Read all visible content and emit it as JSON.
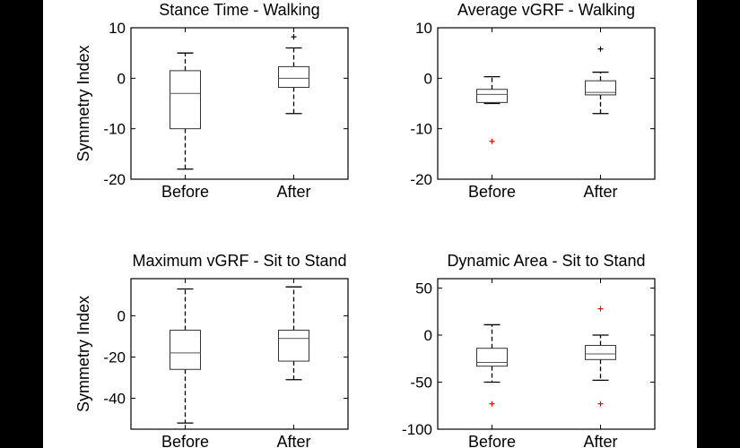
{
  "colors": {
    "figure_bg": "#ffffff",
    "outer_bg": "#000000",
    "box": "#333333",
    "whisker": "#000000",
    "outlier": "#ff0000"
  },
  "chart_data": [
    {
      "type": "boxplot",
      "title": "Stance Time - Walking",
      "ylabel": "Symmetry Index",
      "ylim": [
        -20,
        10
      ],
      "yticks": [
        10,
        0,
        -10,
        -20
      ],
      "ytick_labels": [
        "10",
        "0",
        "-10",
        "-20"
      ],
      "categories": [
        "Before",
        "After"
      ],
      "boxes": [
        {
          "category": "Before",
          "whisker_low": -18,
          "q1": -10,
          "median": -3,
          "q3": 1.5,
          "whisker_high": 5,
          "outliers": []
        },
        {
          "category": "After",
          "whisker_low": -7,
          "q1": -1.8,
          "median": 0,
          "q3": 2.3,
          "whisker_high": 6,
          "outliers": [
            8.2
          ]
        }
      ]
    },
    {
      "type": "boxplot",
      "title": "Average vGRF - Walking",
      "ylabel": "",
      "ylim": [
        -20,
        10
      ],
      "yticks": [
        10,
        0,
        -10,
        -20
      ],
      "ytick_labels": [
        "10",
        "0",
        "-10",
        "-20"
      ],
      "categories": [
        "Before",
        "After"
      ],
      "boxes": [
        {
          "category": "Before",
          "whisker_low": -5,
          "q1": -4.8,
          "median": -3.2,
          "q3": -2.2,
          "whisker_high": 0.3,
          "outliers": [
            -12.5
          ]
        },
        {
          "category": "After",
          "whisker_low": -7,
          "q1": -3.3,
          "median": -2.8,
          "q3": -0.5,
          "whisker_high": 1.2,
          "outliers": [
            5.8
          ]
        }
      ]
    },
    {
      "type": "boxplot",
      "title": "Maximum vGRF - Sit to Stand",
      "ylabel": "Symmetry Index",
      "ylim": [
        -55,
        18
      ],
      "yticks": [
        0,
        -20,
        -40
      ],
      "ytick_labels": [
        "0",
        "-20",
        "-40"
      ],
      "categories": [
        "Before",
        "After"
      ],
      "boxes": [
        {
          "category": "Before",
          "whisker_low": -52,
          "q1": -26,
          "median": -18,
          "q3": -7,
          "whisker_high": 13,
          "outliers": []
        },
        {
          "category": "After",
          "whisker_low": -31,
          "q1": -22,
          "median": -11,
          "q3": -7,
          "whisker_high": 14,
          "outliers": []
        }
      ]
    },
    {
      "type": "boxplot",
      "title": "Dynamic Area - Sit to Stand",
      "ylabel": "",
      "ylim": [
        -100,
        60
      ],
      "yticks": [
        50,
        0,
        -50,
        -100
      ],
      "ytick_labels": [
        "50",
        "0",
        "-50",
        "-100"
      ],
      "categories": [
        "Before",
        "After"
      ],
      "boxes": [
        {
          "category": "Before",
          "whisker_low": -50,
          "q1": -33,
          "median": -29,
          "q3": -14,
          "whisker_high": 11,
          "outliers": [
            -73
          ]
        },
        {
          "category": "After",
          "whisker_low": -48,
          "q1": -26,
          "median": -20,
          "q3": -11,
          "whisker_high": 0,
          "outliers": [
            28,
            -73
          ]
        }
      ]
    }
  ]
}
